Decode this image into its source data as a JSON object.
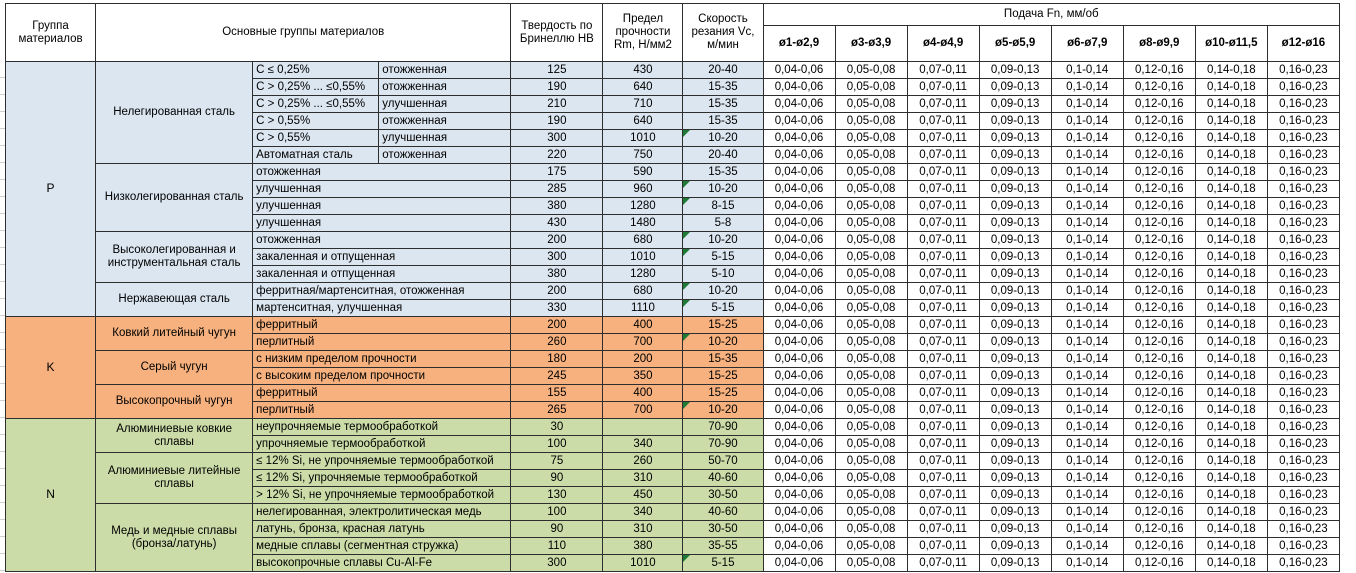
{
  "header": {
    "col_group": "Группа материалов",
    "col_main_groups": "Основные группы материалов",
    "col_hardness": "Твердость по Бринеллю НВ",
    "col_strength": "Предел прочности Rm, Н/мм2",
    "col_speed": "Скорость резания Vc, м/мин",
    "feed_title": "Подача Fn, мм/об",
    "feed_cols": [
      "ø1-ø2,9",
      "ø3-ø3,9",
      "ø4-ø4,9",
      "ø5-ø5,9",
      "ø6-ø7,9",
      "ø8-ø9,9",
      "ø10-ø11,5",
      "ø12-ø16"
    ]
  },
  "feed_values": [
    "0,04-0,06",
    "0,05-0,08",
    "0,07-0,11",
    "0,09-0,13",
    "0,1-0,14",
    "0,12-0,16",
    "0,14-0,18",
    "0,16-0,23"
  ],
  "colors": {
    "group_p": "#DCE6F1",
    "group_k": "#F6B17E",
    "group_n": "#CBDCA8",
    "flag_triangle": "#1e7a34"
  },
  "groups": [
    {
      "code": "P",
      "color": "#DCE6F1",
      "subgroups": [
        {
          "name": "Нелегированная сталь",
          "rows": [
            {
              "c1": "C ≤ 0,25%",
              "c2": "отожженная",
              "hb": "125",
              "rm": "430",
              "vc": "20-40",
              "flag": false
            },
            {
              "c1": "C > 0,25% ... ≤0,55%",
              "c2": "отожженная",
              "hb": "190",
              "rm": "640",
              "vc": "15-35",
              "flag": false
            },
            {
              "c1": "C > 0,25% ... ≤0,55%",
              "c2": "улучшенная",
              "hb": "210",
              "rm": "710",
              "vc": "15-35",
              "flag": false
            },
            {
              "c1": "C > 0,55%",
              "c2": "отожженная",
              "hb": "190",
              "rm": "640",
              "vc": "15-35",
              "flag": false
            },
            {
              "c1": "C > 0,55%",
              "c2": "улучшенная",
              "hb": "300",
              "rm": "1010",
              "vc": "10-20",
              "flag": true
            },
            {
              "c1": "Автоматная сталь",
              "c2": "отожженная",
              "hb": "220",
              "rm": "750",
              "vc": "20-40",
              "flag": false
            }
          ]
        },
        {
          "name": "Низколегированная сталь",
          "rows": [
            {
              "desc": "отожженная",
              "hb": "175",
              "rm": "590",
              "vc": "15-35",
              "flag": false
            },
            {
              "desc": "улучшенная",
              "hb": "285",
              "rm": "960",
              "vc": "10-20",
              "flag": true
            },
            {
              "desc": "улучшенная",
              "hb": "380",
              "rm": "1280",
              "vc": "8-15",
              "flag": true
            },
            {
              "desc": "улучшенная",
              "hb": "430",
              "rm": "1480",
              "vc": "5-8",
              "flag": false
            }
          ]
        },
        {
          "name": "Высоколегированная и инструментальная сталь",
          "rows": [
            {
              "desc": "отожженная",
              "hb": "200",
              "rm": "680",
              "vc": "10-20",
              "flag": true
            },
            {
              "desc": "закаленная и отпущенная",
              "hb": "300",
              "rm": "1010",
              "vc": "5-15",
              "flag": true
            },
            {
              "desc": "закаленная и отпущенная",
              "hb": "380",
              "rm": "1280",
              "vc": "5-10",
              "flag": false
            }
          ]
        },
        {
          "name": "Нержавеющая сталь",
          "rows": [
            {
              "desc": "ферритная/мартенситная, отожженная",
              "hb": "200",
              "rm": "680",
              "vc": "10-20",
              "flag": true
            },
            {
              "desc": "мартенситная, улучшенная",
              "hb": "330",
              "rm": "1110",
              "vc": "5-15",
              "flag": true
            }
          ]
        }
      ]
    },
    {
      "code": "K",
      "color": "#F6B17E",
      "subgroups": [
        {
          "name": "Ковкий литейный чугун",
          "rows": [
            {
              "desc": "ферритный",
              "hb": "200",
              "rm": "400",
              "vc": "15-25",
              "flag": false
            },
            {
              "desc": "перлитный",
              "hb": "260",
              "rm": "700",
              "vc": "10-20",
              "flag": true
            }
          ]
        },
        {
          "name": "Серый чугун",
          "rows": [
            {
              "desc": "с низким пределом прочности",
              "hb": "180",
              "rm": "200",
              "vc": "15-35",
              "flag": false
            },
            {
              "desc": "с высоким пределом прочности",
              "hb": "245",
              "rm": "350",
              "vc": "15-25",
              "flag": false
            }
          ]
        },
        {
          "name": "Высокопрочный чугун",
          "rows": [
            {
              "desc": "ферритный",
              "hb": "155",
              "rm": "400",
              "vc": "15-25",
              "flag": false
            },
            {
              "desc": "перлитный",
              "hb": "265",
              "rm": "700",
              "vc": "10-20",
              "flag": true
            }
          ]
        }
      ]
    },
    {
      "code": "N",
      "color": "#CBDCA8",
      "subgroups": [
        {
          "name": "Алюминиевые ковкие сплавы",
          "rows": [
            {
              "desc": "неупрочняемые термообработкой",
              "hb": "30",
              "rm": "",
              "vc": "70-90",
              "flag": false
            },
            {
              "desc": "упрочняемые термообработкой",
              "hb": "100",
              "rm": "340",
              "vc": "70-90",
              "flag": false
            }
          ]
        },
        {
          "name": "Алюминиевые литейные сплавы",
          "rows": [
            {
              "desc": "≤ 12% Si, не упрочняемые термообработкой",
              "hb": "75",
              "rm": "260",
              "vc": "50-70",
              "flag": false
            },
            {
              "desc": "≤ 12% Si, упрочняемые термообработкой",
              "hb": "90",
              "rm": "310",
              "vc": "40-60",
              "flag": false
            },
            {
              "desc": "> 12% Si, не упрочняемые термообработкой",
              "hb": "130",
              "rm": "450",
              "vc": "30-50",
              "flag": false
            }
          ]
        },
        {
          "name": "Медь и медные сплавы (бронза/латунь)",
          "rows": [
            {
              "desc": "нелегированная, электролитическая медь",
              "hb": "100",
              "rm": "340",
              "vc": "40-60",
              "flag": false
            },
            {
              "desc": "латунь, бронза, красная латунь",
              "hb": "90",
              "rm": "310",
              "vc": "30-50",
              "flag": false
            },
            {
              "desc": "медные сплавы (сегментная стружка)",
              "hb": "110",
              "rm": "380",
              "vc": "35-55",
              "flag": false
            },
            {
              "desc": "высокопрочные сплавы Cu-Al-Fe",
              "hb": "300",
              "rm": "1010",
              "vc": "5-15",
              "flag": true
            }
          ]
        }
      ]
    }
  ]
}
